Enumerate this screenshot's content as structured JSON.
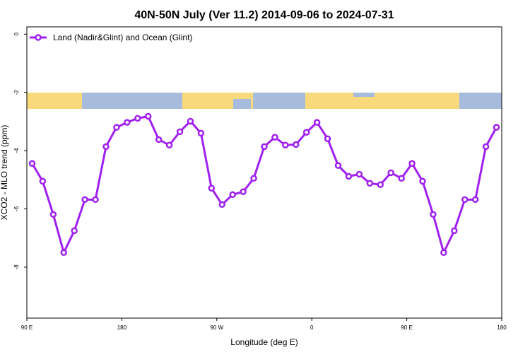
{
  "chart_data": {
    "type": "line",
    "title": "40N-50N July (Ver 11.2)   2014-09-06 to 2024-07-31",
    "x_label": "Longitude (deg E)",
    "y_label": "XCO2 - MLO trend (ppm)",
    "x": [
      95,
      105,
      115,
      125,
      135,
      145,
      155,
      165,
      175,
      185,
      195,
      205,
      215,
      225,
      235,
      245,
      255,
      265,
      275,
      285,
      295,
      305,
      315,
      325,
      335,
      345,
      355,
      365,
      375,
      385,
      395,
      405,
      415,
      425,
      435,
      445,
      455,
      465,
      475,
      485,
      495,
      505,
      515,
      525,
      535
    ],
    "series": [
      {
        "name": "Land (Nadir&Glint) and Ocean (Glint)",
        "color": "#a020f0",
        "values": [
          -4.44,
          -5.05,
          -6.19,
          -7.5,
          -6.75,
          -5.68,
          -5.68,
          -3.86,
          -3.2,
          -3.03,
          -2.89,
          -2.82,
          -3.62,
          -3.81,
          -3.35,
          -2.99,
          -3.4,
          -5.29,
          -5.85,
          -5.51,
          -5.41,
          -4.95,
          -3.86,
          -3.54,
          -3.81,
          -3.79,
          -3.37,
          -3.03,
          -3.59,
          -4.51,
          -4.88,
          -4.81,
          -5.12,
          -5.17,
          -4.76,
          -4.95,
          -4.44,
          -5.05,
          -6.19,
          -7.5,
          -6.75,
          -5.68,
          -5.68,
          -3.86,
          -3.2
        ]
      }
    ],
    "xlim": [
      90,
      540
    ],
    "xticks": [
      {
        "value": 90,
        "label": "90 E"
      },
      180,
      {
        "value": 270,
        "label": "90 W"
      },
      {
        "value": 360,
        "label": "0"
      },
      {
        "value": 450,
        "label": "90 E"
      },
      {
        "value": 540,
        "label": "180"
      }
    ],
    "ylim": [
      -9.75,
      0.25
    ],
    "yticks": [
      0,
      -2,
      -4,
      -6,
      -8
    ],
    "legend": "top-left"
  }
}
